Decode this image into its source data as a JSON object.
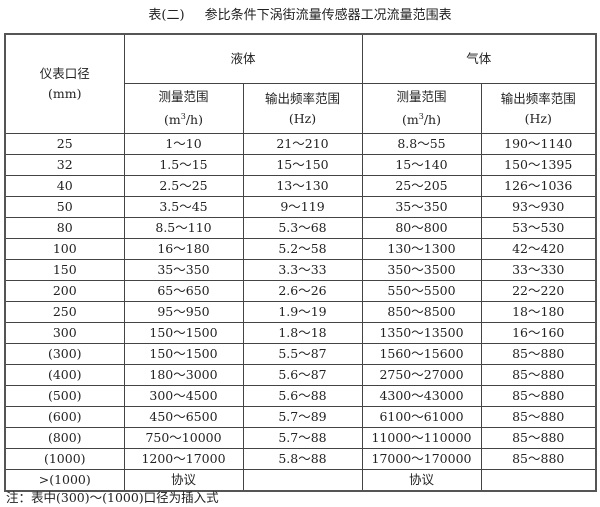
{
  "title": {
    "prefix": "表(二)",
    "text": "参比条件下涡街流量传感器工况流量范围表"
  },
  "header": {
    "diameter": "仪表口径",
    "diameter_unit": "(mm)",
    "liquid": "液体",
    "gas": "气体",
    "measure_range": "测量范围",
    "flow_unit_pre": "(m",
    "flow_unit_sup": "3",
    "flow_unit_post": "/h)",
    "freq_range": "输出频率范围",
    "freq_unit": "(Hz)"
  },
  "rows": [
    [
      "25",
      "1～10",
      "21～210",
      "8.8～55",
      "190～1140"
    ],
    [
      "32",
      "1.5～15",
      "15～150",
      "15～140",
      "150～1395"
    ],
    [
      "40",
      "2.5～25",
      "13～130",
      "25～205",
      "126～1036"
    ],
    [
      "50",
      "3.5～45",
      "9～119",
      "35～350",
      "93～930"
    ],
    [
      "80",
      "8.5～110",
      "5.3～68",
      "80～800",
      "53～530"
    ],
    [
      "100",
      "16～180",
      "5.2～58",
      "130～1300",
      "42～420"
    ],
    [
      "150",
      "35～350",
      "3.3～33",
      "350～3500",
      "33～330"
    ],
    [
      "200",
      "65～650",
      "2.6～26",
      "550～5500",
      "22～220"
    ],
    [
      "250",
      "95～950",
      "1.9～19",
      "850～8500",
      "18～180"
    ],
    [
      "300",
      "150～1500",
      "1.8～18",
      "1350～13500",
      "16～160"
    ],
    [
      "(300)",
      "150～1500",
      "5.5～87",
      "1560～15600",
      "85～880"
    ],
    [
      "(400)",
      "180～3000",
      "5.6～87",
      "2750～27000",
      "85～880"
    ],
    [
      "(500)",
      "300～4500",
      "5.6～88",
      "4300～43000",
      "85～880"
    ],
    [
      "(600)",
      "450～6500",
      "5.7～89",
      "6100～61000",
      "85～880"
    ],
    [
      "(800)",
      "750～10000",
      "5.7～88",
      "11000～110000",
      "85～880"
    ],
    [
      "(1000)",
      "1200～17000",
      "5.8～88",
      "17000～170000",
      "85～880"
    ],
    [
      ">(1000)",
      "协议",
      "",
      "协议",
      ""
    ]
  ],
  "note": "注：表中(300)～(1000)口径为插入式"
}
